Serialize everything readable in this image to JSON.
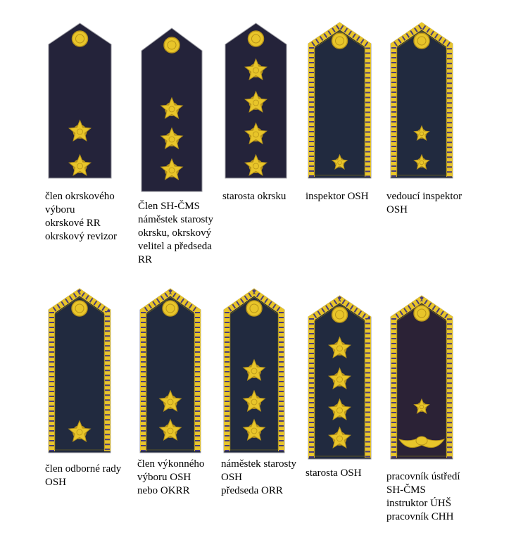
{
  "colors": {
    "navy": "#24233a",
    "navy_bordered": "#212a3f",
    "purple": "#2b2236",
    "gold": "#e8c52a",
    "gold_dark": "#b8941a",
    "braid_dark": "#4a3d7a"
  },
  "items": [
    {
      "stars": 2,
      "star_size": "large",
      "border": false,
      "bg": "navy",
      "lines": [
        "člen okrskového",
        "výboru",
        "okrskové RR",
        "okrskový revizor"
      ]
    },
    {
      "stars": 3,
      "star_size": "large",
      "border": false,
      "bg": "navy",
      "lines": [
        "Člen SH-ČMS",
        "náměstek starosty",
        "okrsku, okrskový",
        "velitel a předseda",
        "RR"
      ]
    },
    {
      "stars": 4,
      "star_size": "large",
      "border": false,
      "bg": "navy",
      "lines": [
        "starosta okrsku"
      ]
    },
    {
      "stars": 1,
      "star_size": "small",
      "border": true,
      "bg": "navy_bordered",
      "lines": [
        "inspektor OSH"
      ]
    },
    {
      "stars": 2,
      "star_size": "small",
      "border": true,
      "bg": "navy_bordered",
      "lines": [
        "vedoucí inspektor",
        "OSH"
      ]
    },
    {
      "stars": 1,
      "star_size": "large",
      "border": true,
      "bg": "navy_bordered",
      "lines": [
        "člen odborné rady",
        "OSH"
      ]
    },
    {
      "stars": 2,
      "star_size": "large",
      "border": true,
      "bg": "navy_bordered",
      "lines": [
        "člen výkonného",
        "výboru OSH",
        "nebo OKRR"
      ]
    },
    {
      "stars": 3,
      "star_size": "large",
      "border": true,
      "bg": "navy_bordered",
      "lines": [
        "náměstek starosty",
        "OSH",
        "předseda ORR"
      ]
    },
    {
      "stars": 4,
      "star_size": "large",
      "border": true,
      "bg": "navy_bordered",
      "lines": [
        "starosta OSH"
      ]
    },
    {
      "stars": 1,
      "star_size": "small",
      "border": true,
      "bg": "purple",
      "laurel": true,
      "lines": [
        "pracovník ústředí",
        "SH-ČMS",
        "instruktor ÚHŠ",
        "pracovník CHH"
      ]
    }
  ]
}
